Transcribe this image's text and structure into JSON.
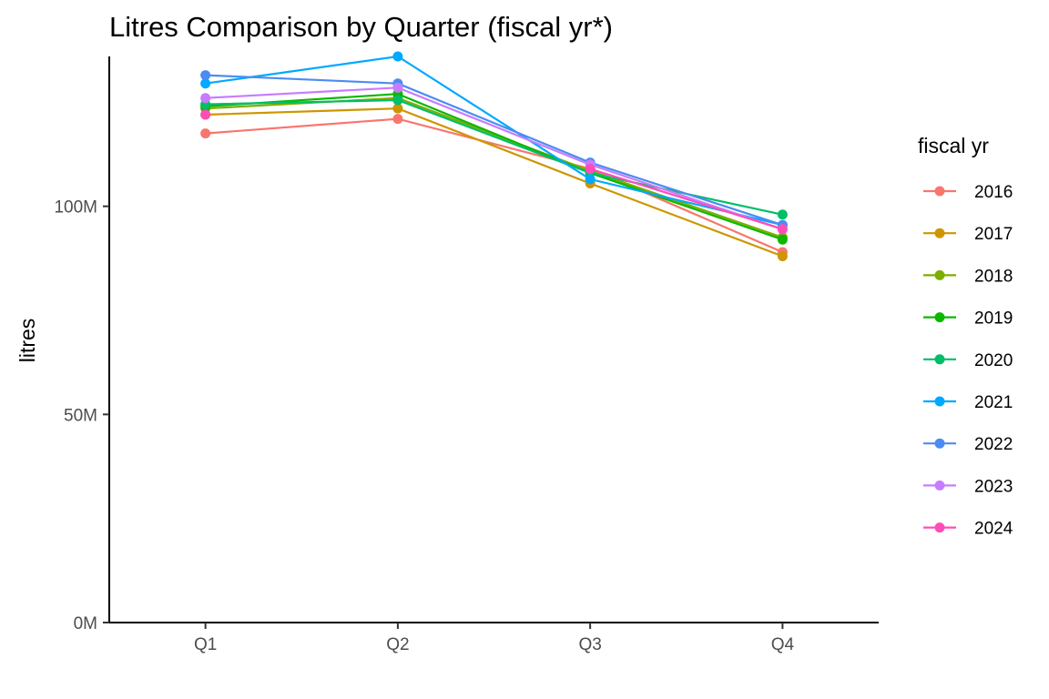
{
  "chart_data": {
    "type": "line",
    "title": "Litres Comparison by Quarter (fiscal yr*)",
    "xlabel": "",
    "ylabel": "litres",
    "categories": [
      "Q1",
      "Q2",
      "Q3",
      "Q4"
    ],
    "ylim": [
      0,
      136000000
    ],
    "yticks": [
      0,
      50000000,
      100000000
    ],
    "ytick_labels": [
      "0M",
      "50M",
      "100M"
    ],
    "grid": false,
    "legend": {
      "title": "fiscal yr",
      "placement": "right"
    },
    "series": [
      {
        "name": "2016",
        "color": "#F8766D",
        "values": [
          117500000,
          121000000,
          109000000,
          89000000
        ]
      },
      {
        "name": "2017",
        "color": "#CD9600",
        "values": [
          122000000,
          123500000,
          105500000,
          88000000
        ]
      },
      {
        "name": "2018",
        "color": "#7CAE00",
        "values": [
          123500000,
          126000000,
          108500000,
          92500000
        ]
      },
      {
        "name": "2019",
        "color": "#0CB702",
        "values": [
          124000000,
          127000000,
          108000000,
          92000000
        ]
      },
      {
        "name": "2020",
        "color": "#00BE67",
        "values": [
          124500000,
          125500000,
          108000000,
          98000000
        ]
      },
      {
        "name": "2021",
        "color": "#00A9FF",
        "values": [
          129500000,
          136000000,
          106500000,
          95500000
        ]
      },
      {
        "name": "2022",
        "color": "#4B8CF2",
        "values": [
          131500000,
          129500000,
          110500000,
          95500000
        ]
      },
      {
        "name": "2023",
        "color": "#C77CFF",
        "values": [
          126000000,
          128500000,
          110000000,
          94500000
        ]
      },
      {
        "name": "2024",
        "color": "#FF4DB8",
        "values": [
          122000000,
          null,
          109000000,
          94500000
        ]
      }
    ]
  }
}
